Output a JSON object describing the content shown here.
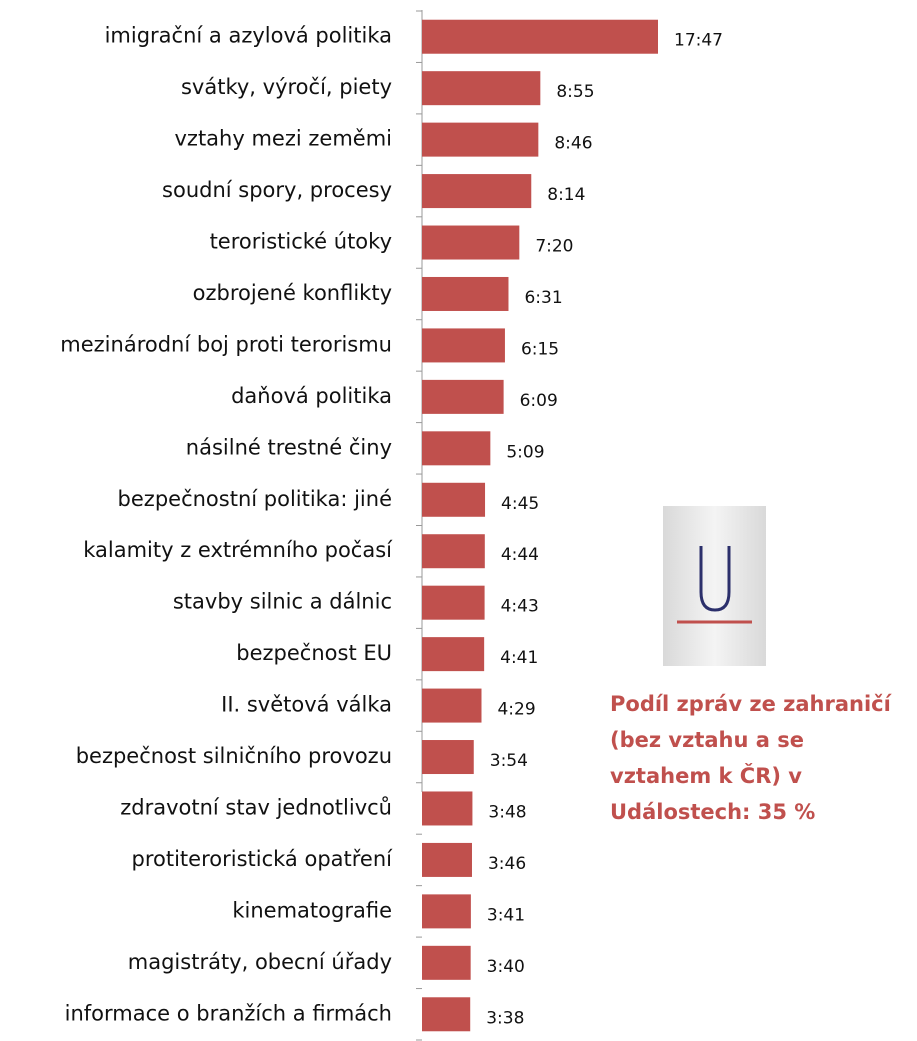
{
  "chart_data": {
    "type": "barh",
    "categories": [
      "imigrační a azylová politika",
      "svátky, výročí, piety",
      "vztahy mezi zeměmi",
      "soudní spory, procesy",
      "teroristické útoky",
      "ozbrojené konflikty",
      "mezinárodní boj proti terorismu",
      "daňová politika",
      "násilné trestné činy",
      "bezpečnostní politika: jiné",
      "kalamity z extrémního počasí",
      "stavby silnic a dálnic",
      "bezpečnost EU",
      "II. světová válka",
      "bezpečnost silničního provozu",
      "zdravotní stav jednotlivců",
      "protiteroristická opatření",
      "kinematografie",
      "magistráty, obecní úřady",
      "informace o branžích a firmách"
    ],
    "values": [
      1067,
      535,
      526,
      494,
      440,
      391,
      375,
      369,
      309,
      285,
      284,
      283,
      281,
      269,
      234,
      228,
      226,
      221,
      220,
      218
    ],
    "value_labels": [
      "17:47",
      "8:55",
      "8:46",
      "8:14",
      "7:20",
      "6:31",
      "6:15",
      "6:09",
      "5:09",
      "4:45",
      "4:44",
      "4:43",
      "4:41",
      "4:29",
      "3:54",
      "3:48",
      "3:46",
      "3:41",
      "3:40",
      "3:38"
    ],
    "color": "#c0504d",
    "annotation": [
      "Podíl zpráv ze zahraničí",
      "(bez vztahu a se",
      "vztahem k ČR) v",
      "Událostech: 35 %"
    ]
  }
}
